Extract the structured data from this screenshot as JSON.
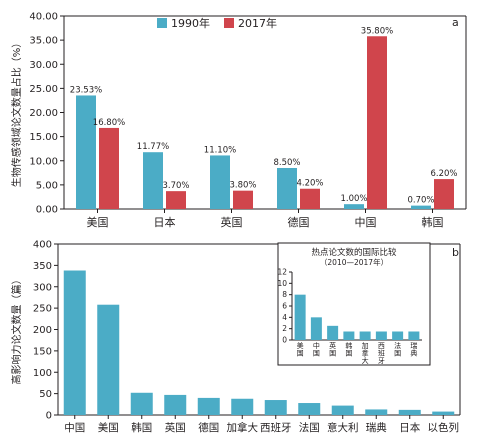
{
  "colors": {
    "blue": "#4bacc6",
    "red": "#d0454c",
    "axis": "#231f20"
  },
  "chart_data": [
    {
      "panel": "a",
      "type": "bar",
      "title": "",
      "ylabel": "生物传感领域论文数量占比（%）",
      "xlabel": "",
      "ylim": [
        0,
        40
      ],
      "yticks": [
        "0.00",
        "5.00",
        "10.00",
        "15.00",
        "20.00",
        "25.00",
        "30.00",
        "35.00",
        "40.00"
      ],
      "ytick_values": [
        0,
        5,
        10,
        15,
        20,
        25,
        30,
        35,
        40
      ],
      "grid": false,
      "legend_position": "top-center",
      "categories": [
        "美国",
        "日本",
        "英国",
        "德国",
        "中国",
        "韩国"
      ],
      "series": [
        {
          "name": "1990年",
          "color": "#4bacc6",
          "values": [
            23.53,
            11.77,
            11.1,
            8.5,
            1.0,
            0.7
          ],
          "labels": [
            "23.53%",
            "11.77%",
            "11.10%",
            "8.50%",
            "1.00%",
            "0.70%"
          ]
        },
        {
          "name": "2017年",
          "color": "#d0454c",
          "values": [
            16.8,
            3.7,
            3.8,
            4.2,
            35.8,
            6.2
          ],
          "labels": [
            "16.80%",
            "3.70%",
            "3.80%",
            "4.20%",
            "35.80%",
            "6.20%"
          ]
        }
      ]
    },
    {
      "panel": "b",
      "type": "bar",
      "title": "",
      "ylabel": "高影响力论文数量（篇）",
      "xlabel": "",
      "ylim": [
        0,
        400
      ],
      "yticks": [
        "0",
        "50",
        "100",
        "150",
        "200",
        "250",
        "300",
        "350",
        "400"
      ],
      "ytick_values": [
        0,
        50,
        100,
        150,
        200,
        250,
        300,
        350,
        400
      ],
      "grid": false,
      "categories": [
        "中国",
        "美国",
        "韩国",
        "英国",
        "德国",
        "加拿大",
        "西班牙",
        "法国",
        "意大利",
        "瑞典",
        "日本",
        "以色列"
      ],
      "series": [
        {
          "color": "#4bacc6",
          "values": [
            338,
            258,
            52,
            47,
            40,
            38,
            35,
            28,
            22,
            13,
            12,
            8
          ]
        }
      ]
    },
    {
      "panel": "b-inset",
      "type": "bar",
      "title": "热点论文数的国际比较",
      "subtitle": "（2010—2017年）",
      "xlabel": "",
      "ylabel": "",
      "ylim": [
        0,
        12
      ],
      "yticks": [
        "0",
        "2",
        "4",
        "6",
        "8",
        "10",
        "12"
      ],
      "ytick_values": [
        0,
        2,
        4,
        6,
        8,
        10,
        12
      ],
      "grid": false,
      "categories": [
        "美国",
        "中国",
        "英国",
        "韩国",
        "加拿大",
        "西班牙",
        "法国",
        "瑞典"
      ],
      "series": [
        {
          "color": "#4bacc6",
          "values": [
            8,
            4,
            2.5,
            1.5,
            1.5,
            1.5,
            1.5,
            1.5
          ]
        }
      ]
    }
  ],
  "panel_labels": {
    "a": "a",
    "b": "b"
  }
}
